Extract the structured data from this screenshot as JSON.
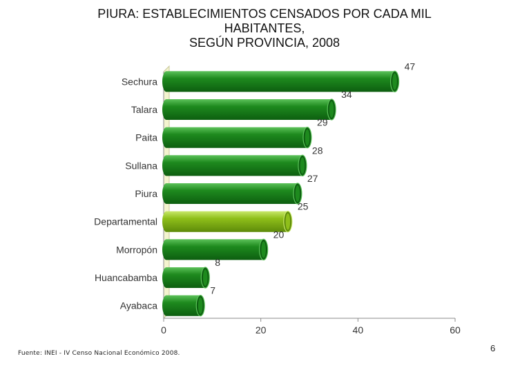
{
  "title_lines": [
    "PIURA: ESTABLECIMIENTOS CENSADOS POR CADA MIL",
    "HABITANTES,",
    "SEGÚN PROVINCIA, 2008"
  ],
  "source": "Fuente: INEI - IV Censo Nacional Económico 2008.",
  "page_number": "6",
  "colors": {
    "bar": "#1e8a1e",
    "bar_dark": "#0d5e10",
    "bar_light": "#5cc25a",
    "highlight": "#8fbf1a",
    "highlight_dark": "#5d8a0a",
    "highlight_light": "#c8e86a",
    "wall": "#f4f4cf"
  },
  "chart_data": {
    "type": "bar",
    "orientation": "horizontal",
    "categories": [
      "Sechura",
      "Talara",
      "Paita",
      "Sullana",
      "Piura",
      "Departamental",
      "Morropón",
      "Huancabamba",
      "Ayabaca"
    ],
    "values": [
      47,
      34,
      29,
      28,
      27,
      25,
      20,
      8,
      7
    ],
    "highlight_category": "Departamental",
    "xlim": [
      0,
      60
    ],
    "xticks": [
      "0",
      "20",
      "40",
      "60"
    ],
    "xlabel": "",
    "ylabel": "",
    "grid": false,
    "legend": "none",
    "data_labels": true
  }
}
